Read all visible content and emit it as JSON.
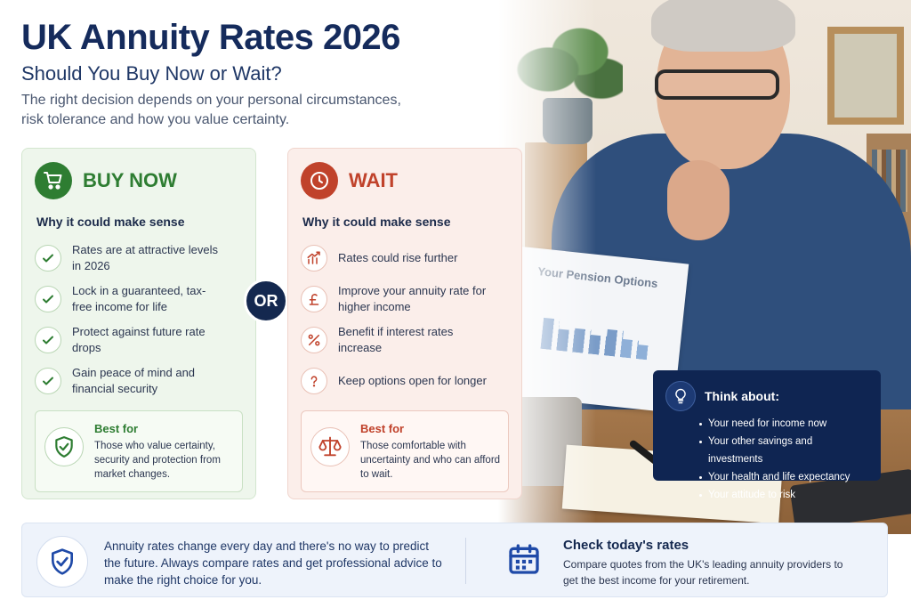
{
  "header": {
    "title": "UK Annuity Rates 2026",
    "subtitle": "Should You Buy Now or Wait?",
    "intro": "The right decision depends on your personal circumstances, risk tolerance and how you value certainty."
  },
  "buy_now": {
    "title": "BUY NOW",
    "why": "Why it could make sense",
    "icon": "shopping-cart-icon",
    "color": "#2e7d32",
    "items": [
      {
        "text": "Rates are at attractive levels in 2026",
        "icon": "check-icon"
      },
      {
        "text": "Lock in a guaranteed, tax-free income for life",
        "icon": "check-icon"
      },
      {
        "text": "Protect against future rate drops",
        "icon": "check-icon"
      },
      {
        "text": "Gain peace of mind and financial security",
        "icon": "check-icon"
      }
    ],
    "best_for": {
      "title": "Best for",
      "text": "Those who value certainty, security and protection from market changes.",
      "icon": "shield-check-icon"
    }
  },
  "or_label": "OR",
  "wait": {
    "title": "WAIT",
    "why": "Why it could make sense",
    "icon": "clock-icon",
    "color": "#c0422b",
    "items": [
      {
        "text": "Rates could rise further",
        "icon": "trend-up-icon"
      },
      {
        "text": "Improve your annuity rate for higher income",
        "icon": "pound-icon"
      },
      {
        "text": "Benefit if interest rates increase",
        "icon": "percent-icon"
      },
      {
        "text": "Keep options open for longer",
        "icon": "question-icon"
      }
    ],
    "best_for": {
      "title": "Best for",
      "text": "Those comfortable with uncertainty and who can afford to wait.",
      "icon": "scales-icon"
    }
  },
  "photo": {
    "paper_title": "Your Pension Options"
  },
  "think_about": {
    "title": "Think about:",
    "icon": "lightbulb-icon",
    "items": [
      "Your need for income now",
      "Your other savings and investments",
      "Your health and life expectancy",
      "Your attitude to risk"
    ]
  },
  "footer": {
    "left_text": "Annuity rates change every day and there's no way to predict the future. Always compare rates and get professional advice to make the right choice for you.",
    "left_icon": "shield-check-icon",
    "right_title": "Check today's rates",
    "right_text": "Compare quotes from the UK's leading annuity providers to get the best income for your retirement.",
    "right_icon": "calendar-icon"
  }
}
